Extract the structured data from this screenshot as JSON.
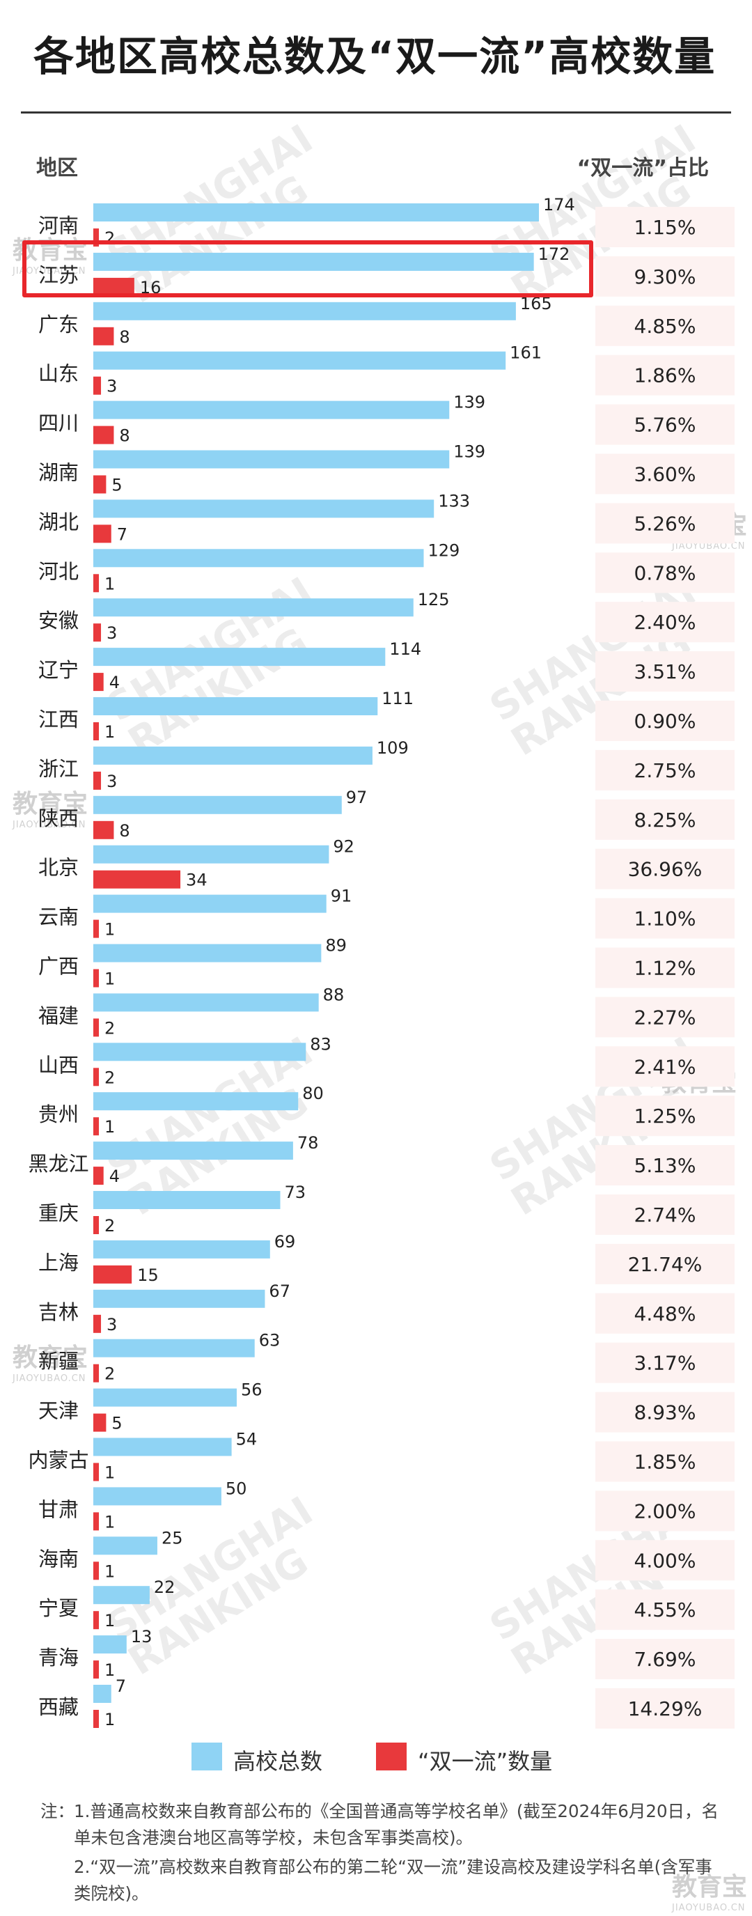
{
  "title": "各地区高校总数及“双一流”高校数量",
  "header": {
    "region_label": "地区",
    "share_label": "“双一流”占比"
  },
  "legend": {
    "total_label": "高校总数",
    "dfc_label": "“双一流”数量"
  },
  "colors": {
    "total_bar": "#8fd3f4",
    "dfc_bar": "#e8393c",
    "share_bg": "#fdf2f1",
    "highlight": "#e8262b"
  },
  "watermark": {
    "brand_lines": [
      "SHANGHAI",
      "RANKING"
    ],
    "logo_text": "教育宝",
    "logo_sub": "JIAOYUBAO.CN"
  },
  "notes": {
    "prefix": "注：",
    "note1": "1.普通高校数来自教育部公布的《全国普通高等学校名单》(截至2024年6月20日，名单未包含港澳台地区高等学校，未包含军事类高校)。",
    "note2": "2.“双一流”高校数来自教育部公布的第二轮“双一流”建设高校及建设学科名单(含军事类院校)。"
  },
  "chart_data": {
    "type": "bar",
    "orientation": "horizontal",
    "categories": [
      "河南",
      "江苏",
      "广东",
      "山东",
      "四川",
      "湖南",
      "湖北",
      "河北",
      "安徽",
      "辽宁",
      "江西",
      "浙江",
      "陕西",
      "北京",
      "云南",
      "广西",
      "福建",
      "山西",
      "贵州",
      "黑龙江",
      "重庆",
      "上海",
      "吉林",
      "新疆",
      "天津",
      "内蒙古",
      "甘肃",
      "海南",
      "宁夏",
      "青海",
      "西藏"
    ],
    "series": [
      {
        "name": "高校总数",
        "values": [
          174,
          172,
          165,
          161,
          139,
          139,
          133,
          129,
          125,
          114,
          111,
          109,
          97,
          92,
          91,
          89,
          88,
          83,
          80,
          78,
          73,
          69,
          67,
          63,
          56,
          54,
          50,
          25,
          22,
          13,
          7
        ]
      },
      {
        "name": "“双一流”数量",
        "values": [
          2,
          16,
          8,
          3,
          8,
          5,
          7,
          1,
          3,
          4,
          1,
          3,
          8,
          34,
          1,
          1,
          2,
          2,
          1,
          4,
          2,
          15,
          3,
          2,
          5,
          1,
          1,
          1,
          1,
          1,
          1
        ]
      }
    ],
    "share_values": [
      "1.15%",
      "9.30%",
      "4.85%",
      "1.86%",
      "5.76%",
      "3.60%",
      "5.26%",
      "0.78%",
      "2.40%",
      "3.51%",
      "0.90%",
      "2.75%",
      "8.25%",
      "36.96%",
      "1.10%",
      "1.12%",
      "2.27%",
      "2.41%",
      "1.25%",
      "5.13%",
      "2.74%",
      "21.74%",
      "4.48%",
      "3.17%",
      "8.93%",
      "1.85%",
      "2.00%",
      "4.00%",
      "4.55%",
      "7.69%",
      "14.29%"
    ],
    "highlighted_category": "江苏",
    "xlim": [
      0,
      174
    ],
    "grid": false,
    "legend_position": "bottom"
  }
}
